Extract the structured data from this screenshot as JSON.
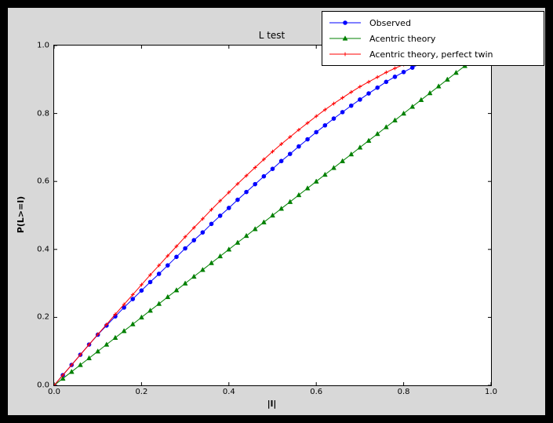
{
  "figure": {
    "title": "L test",
    "xlabel": "|l|",
    "ylabel": "P(L>=l)",
    "background_color": "#d8d8d8",
    "axes_background_color": "#ffffff"
  },
  "axes": {
    "x_ticks": [
      "0.0",
      "0.2",
      "0.4",
      "0.6",
      "0.8",
      "1.0"
    ],
    "y_ticks": [
      "0.0",
      "0.2",
      "0.4",
      "0.6",
      "0.8",
      "1.0"
    ]
  },
  "chart_data": {
    "type": "line",
    "title": "L test",
    "xlabel": "|l|",
    "ylabel": "P(L>=l)",
    "xlim": [
      0,
      1
    ],
    "ylim": [
      0,
      1
    ],
    "grid": false,
    "legend_position": "upper right",
    "series": [
      {
        "name": "Observed",
        "color": "#0000ff",
        "marker": "circle",
        "x": [
          0,
          0.02,
          0.04,
          0.06,
          0.08,
          0.1,
          0.12,
          0.14,
          0.16,
          0.18,
          0.2,
          0.22,
          0.24,
          0.26,
          0.28,
          0.3,
          0.32,
          0.34,
          0.36,
          0.38,
          0.4,
          0.42,
          0.44,
          0.46,
          0.48,
          0.5,
          0.52,
          0.54,
          0.56,
          0.58,
          0.6,
          0.62,
          0.64,
          0.66,
          0.68,
          0.7,
          0.72,
          0.74,
          0.76,
          0.78,
          0.8,
          0.82,
          0.84,
          0.86
        ],
        "y": [
          0,
          0.03,
          0.06,
          0.09,
          0.12,
          0.149,
          0.176,
          0.203,
          0.229,
          0.254,
          0.279,
          0.304,
          0.328,
          0.353,
          0.378,
          0.403,
          0.427,
          0.45,
          0.475,
          0.499,
          0.522,
          0.546,
          0.569,
          0.592,
          0.615,
          0.637,
          0.66,
          0.681,
          0.703,
          0.724,
          0.745,
          0.765,
          0.785,
          0.804,
          0.823,
          0.841,
          0.859,
          0.876,
          0.893,
          0.908,
          0.922,
          0.935,
          0.948,
          0.959
        ]
      },
      {
        "name": "Acentric theory",
        "color": "#008000",
        "marker": "triangle",
        "x": [
          0,
          0.02,
          0.04,
          0.06,
          0.08,
          0.1,
          0.12,
          0.14,
          0.16,
          0.18,
          0.2,
          0.22,
          0.24,
          0.26,
          0.28,
          0.3,
          0.32,
          0.34,
          0.36,
          0.38,
          0.4,
          0.42,
          0.44,
          0.46,
          0.48,
          0.5,
          0.52,
          0.54,
          0.56,
          0.58,
          0.6,
          0.62,
          0.64,
          0.66,
          0.68,
          0.7,
          0.72,
          0.74,
          0.76,
          0.78,
          0.8,
          0.82,
          0.84,
          0.86,
          0.88,
          0.9,
          0.92,
          0.94,
          0.96
        ],
        "y": [
          0,
          0.02,
          0.04,
          0.06,
          0.08,
          0.1,
          0.12,
          0.14,
          0.16,
          0.18,
          0.2,
          0.22,
          0.24,
          0.26,
          0.28,
          0.3,
          0.32,
          0.34,
          0.36,
          0.38,
          0.4,
          0.42,
          0.44,
          0.46,
          0.48,
          0.5,
          0.52,
          0.54,
          0.56,
          0.58,
          0.6,
          0.62,
          0.64,
          0.66,
          0.68,
          0.7,
          0.72,
          0.74,
          0.76,
          0.78,
          0.8,
          0.82,
          0.84,
          0.86,
          0.88,
          0.9,
          0.92,
          0.94,
          0.96
        ]
      },
      {
        "name": "Acentric theory, perfect twin",
        "color": "#ff0000",
        "marker": "plus",
        "x": [
          0,
          0.02,
          0.04,
          0.06,
          0.08,
          0.1,
          0.12,
          0.14,
          0.16,
          0.18,
          0.2,
          0.22,
          0.24,
          0.26,
          0.28,
          0.3,
          0.32,
          0.34,
          0.36,
          0.38,
          0.4,
          0.42,
          0.44,
          0.46,
          0.48,
          0.5,
          0.52,
          0.54,
          0.56,
          0.58,
          0.6,
          0.62,
          0.64,
          0.66,
          0.68,
          0.7,
          0.72,
          0.74,
          0.76,
          0.78,
          0.8,
          0.82,
          0.84,
          0.86
        ],
        "y": [
          0,
          0.03,
          0.06,
          0.09,
          0.12,
          0.15,
          0.179,
          0.209,
          0.238,
          0.267,
          0.296,
          0.325,
          0.353,
          0.381,
          0.409,
          0.437,
          0.464,
          0.49,
          0.517,
          0.543,
          0.568,
          0.593,
          0.617,
          0.641,
          0.665,
          0.688,
          0.71,
          0.731,
          0.752,
          0.772,
          0.792,
          0.811,
          0.829,
          0.846,
          0.863,
          0.879,
          0.893,
          0.907,
          0.921,
          0.933,
          0.944,
          0.954,
          0.964,
          0.972
        ]
      }
    ]
  }
}
